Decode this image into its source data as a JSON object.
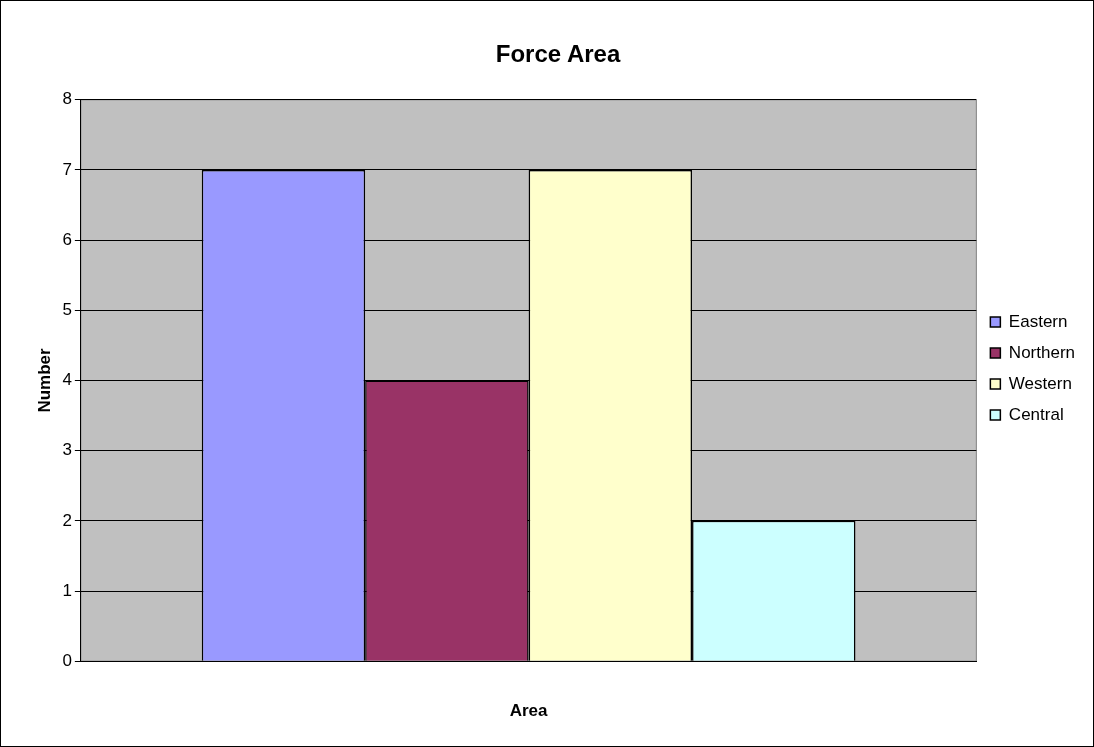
{
  "chart_data": {
    "type": "bar",
    "title": "Force Area",
    "xlabel": "Area",
    "ylabel": "Number",
    "categories": [
      null
    ],
    "series": [
      {
        "name": "Eastern",
        "color": "#9999ff",
        "values": [
          7
        ]
      },
      {
        "name": "Northern",
        "color": "#993366",
        "values": [
          4
        ]
      },
      {
        "name": "Western",
        "color": "#ffffcc",
        "values": [
          7
        ]
      },
      {
        "name": "Central",
        "color": "#ccffff",
        "values": [
          2
        ]
      }
    ],
    "ylim": [
      0,
      8
    ],
    "yticks": [
      0,
      1,
      2,
      3,
      4,
      5,
      6,
      7,
      8
    ],
    "grid": "y",
    "legend": "right"
  }
}
